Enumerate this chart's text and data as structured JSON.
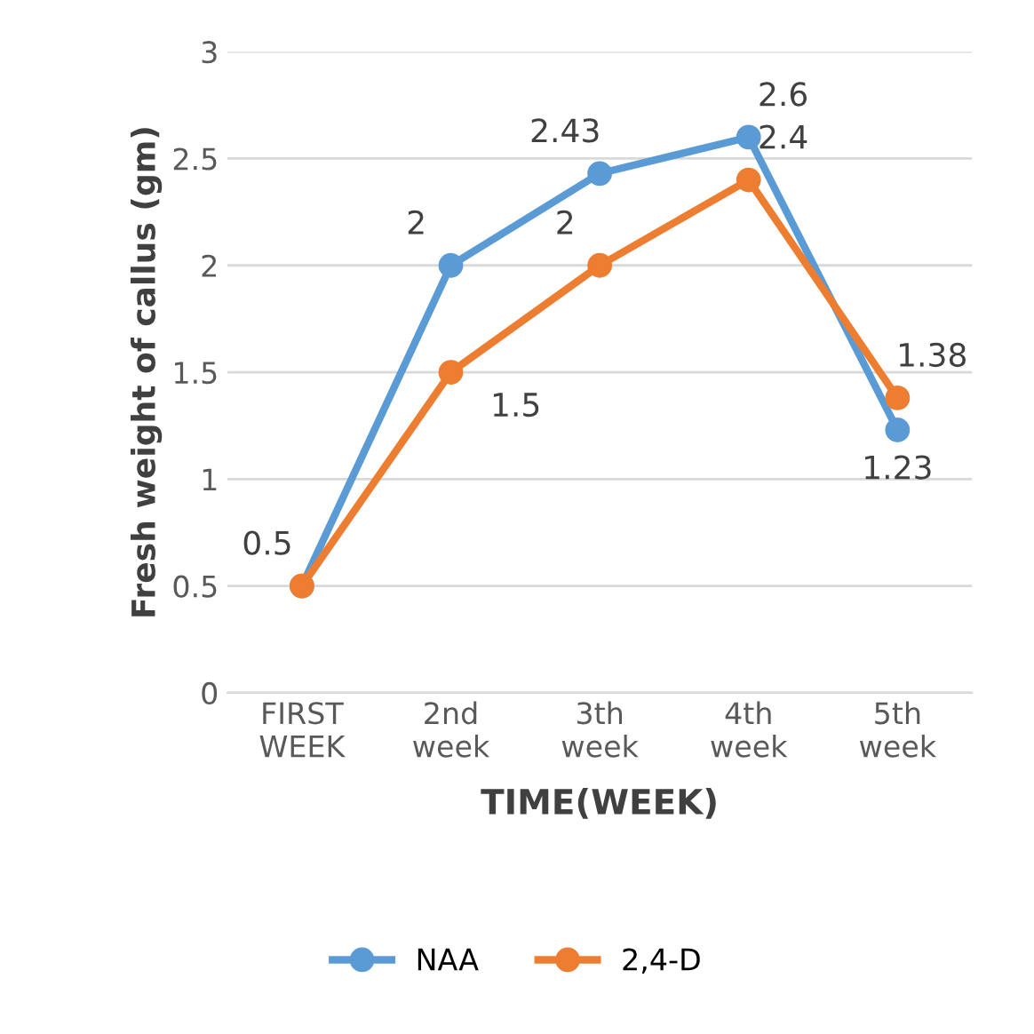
{
  "chart_data": {
    "type": "line",
    "xlabel": "TIME(WEEK)",
    "ylabel": "Fresh weight of callus (gm)",
    "categories": [
      "FIRST\nWEEK",
      "2nd\nweek",
      "3th\nweek",
      "4th\nweek",
      "5th\nweek"
    ],
    "series": [
      {
        "name": "NAA",
        "color": "#5b9bd5",
        "values": [
          0.5,
          2,
          2.43,
          2.6,
          1.23
        ],
        "value_labels": [
          "0.5",
          "2",
          "2.43",
          "2.6",
          "1.23"
        ]
      },
      {
        "name": "2,4-D",
        "color": "#ed7d31",
        "values": [
          0.5,
          1.5,
          2,
          2.4,
          1.38
        ],
        "value_labels": [
          null,
          "1.5",
          "2",
          "2.4",
          "1.38"
        ]
      }
    ],
    "ylim": [
      0,
      3
    ],
    "yticks": [
      0,
      0.5,
      1,
      1.5,
      2,
      2.5,
      3
    ],
    "grid": "y",
    "legend": "bottom",
    "marker": "circle",
    "line_style": "solid"
  }
}
